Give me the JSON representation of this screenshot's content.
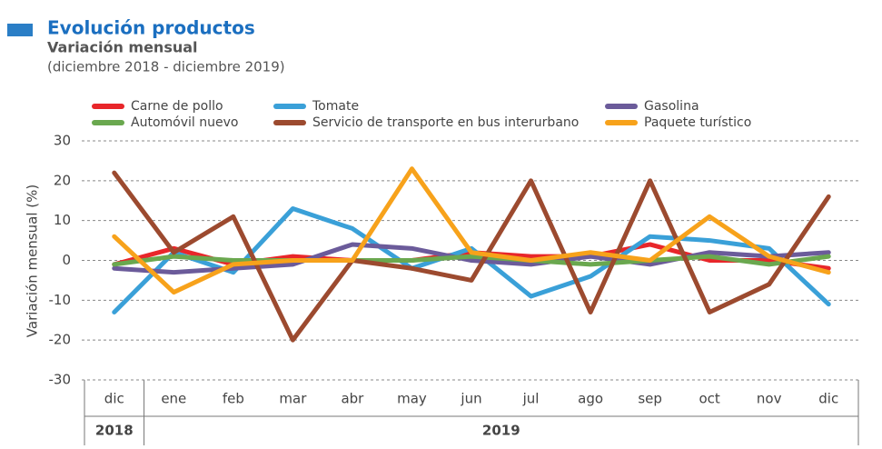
{
  "chart_data": {
    "type": "line",
    "title": "Evolución productos",
    "subtitle": "Variación mensual",
    "note": "(diciembre 2018 - diciembre 2019)",
    "y_label": "Variación mensual (%)",
    "categories": [
      "dic",
      "ene",
      "feb",
      "mar",
      "abr",
      "may",
      "jun",
      "jul",
      "ago",
      "sep",
      "oct",
      "nov",
      "dic"
    ],
    "category_years": [
      "2018",
      "2019",
      "2019",
      "2019",
      "2019",
      "2019",
      "2019",
      "2019",
      "2019",
      "2019",
      "2019",
      "2019",
      "2019"
    ],
    "ylim": [
      -30,
      30
    ],
    "yticks": [
      -30,
      -20,
      -10,
      0,
      10,
      20,
      30
    ],
    "grid": true,
    "series": [
      {
        "name": "Carne de pollo",
        "color": "#e8262a",
        "values": [
          -1,
          3,
          -1,
          1,
          0,
          0,
          2,
          1,
          1,
          4,
          0,
          0,
          -2
        ]
      },
      {
        "name": "Tomate",
        "color": "#3aa0d8",
        "values": [
          -13,
          2,
          -3,
          13,
          8,
          -2,
          3,
          -9,
          -4,
          6,
          5,
          3,
          -11
        ]
      },
      {
        "name": "Gasolina",
        "color": "#6b5b9a",
        "values": [
          -2,
          -3,
          -2,
          -1,
          4,
          3,
          0,
          -1,
          1,
          -1,
          2,
          1,
          2
        ]
      },
      {
        "name": "Automóvil nuevo",
        "color": "#6aa84f",
        "values": [
          -1,
          1,
          0,
          0,
          0,
          0,
          1,
          0,
          -1,
          0,
          1,
          -1,
          1
        ]
      },
      {
        "name": "Servicio de transporte en bus interurbano",
        "color": "#9c4a2f",
        "values": [
          22,
          2,
          11,
          -20,
          0,
          -2,
          -5,
          20,
          -13,
          20,
          -13,
          -6,
          16
        ]
      },
      {
        "name": "Paquete turístico",
        "color": "#f7a21b",
        "values": [
          6,
          -8,
          -1,
          0,
          0,
          23,
          2,
          0,
          2,
          0,
          11,
          1,
          -3
        ]
      }
    ]
  }
}
